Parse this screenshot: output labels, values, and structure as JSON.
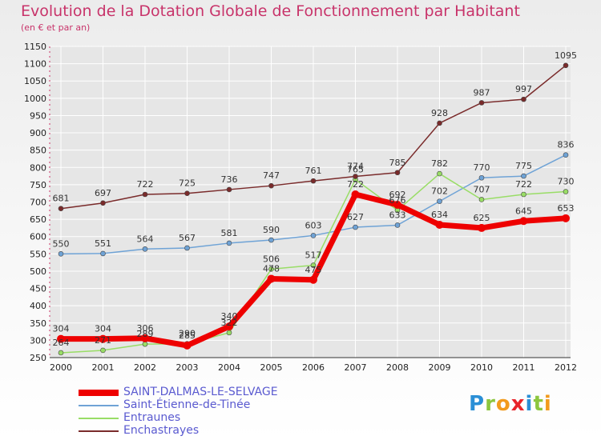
{
  "title": "Evolution de la Dotation Globale de Fonctionnement par Habitant",
  "subtitle": "(en € et par an)",
  "brand": {
    "letters": [
      "P",
      "r",
      "o",
      "x",
      "i",
      "t",
      "i"
    ],
    "colors": [
      "#2a8fd6",
      "#8cc63e",
      "#f29b1d",
      "#e8242a",
      "#2a8fd6",
      "#8cc63e",
      "#f29b1d"
    ]
  },
  "colors": {
    "axis": "#cc3366",
    "grid": "#ffffff"
  },
  "chart_data": {
    "type": "line",
    "title": "Evolution de la Dotation Globale de Fonctionnement par Habitant",
    "subtitle": "(en € et par an)",
    "x": [
      "2000",
      "2001",
      "2002",
      "2003",
      "2004",
      "2005",
      "2006",
      "2007",
      "2008",
      "2009",
      "2010",
      "2011",
      "2012"
    ],
    "ylim": [
      250,
      1150
    ],
    "yticks": [
      250,
      300,
      350,
      400,
      450,
      500,
      550,
      600,
      650,
      700,
      750,
      800,
      850,
      900,
      950,
      1000,
      1050,
      1100,
      1150
    ],
    "grid": true,
    "legend_position": "bottom-left",
    "series": [
      {
        "name": "SAINT-DALMAS-LE-SELVAGE",
        "color": "#ee0000",
        "width": 7,
        "marker": 5,
        "values": [
          304,
          304,
          306,
          285,
          340,
          478,
          475,
          722,
          692,
          634,
          625,
          645,
          653
        ],
        "labels": [
          "304",
          "304",
          "306",
          "285",
          "340",
          "478",
          "475",
          "722",
          "692",
          "634",
          "625",
          "645",
          "653"
        ]
      },
      {
        "name": "Saint-Étienne-de-Tinée",
        "color": "#6fa3d6",
        "width": 1.5,
        "marker": 3,
        "values": [
          550,
          551,
          564,
          567,
          581,
          590,
          603,
          627,
          633,
          702,
          770,
          775,
          836
        ],
        "labels": [
          "550",
          "551",
          "564",
          "567",
          "581",
          "590",
          "603",
          "627",
          "633",
          "702",
          "770",
          "775",
          "836"
        ]
      },
      {
        "name": "Entraunes",
        "color": "#99dd66",
        "width": 1.5,
        "marker": 3,
        "values": [
          264,
          271,
          289,
          290,
          322,
          506,
          517,
          765,
          676,
          782,
          707,
          722,
          730
        ],
        "labels": [
          "264",
          "271",
          "289",
          "290",
          "322",
          "506",
          "517",
          "765",
          "676",
          "782",
          "707",
          "722",
          "730"
        ]
      },
      {
        "name": "Enchastrayes",
        "color": "#7a2b2b",
        "width": 1.5,
        "marker": 3,
        "values": [
          681,
          697,
          722,
          725,
          736,
          747,
          761,
          774,
          785,
          928,
          987,
          997,
          1095
        ],
        "labels": [
          "681",
          "697",
          "722",
          "725",
          "736",
          "747",
          "761",
          "774",
          "785",
          "928",
          "987",
          "997",
          "1095"
        ]
      }
    ]
  }
}
